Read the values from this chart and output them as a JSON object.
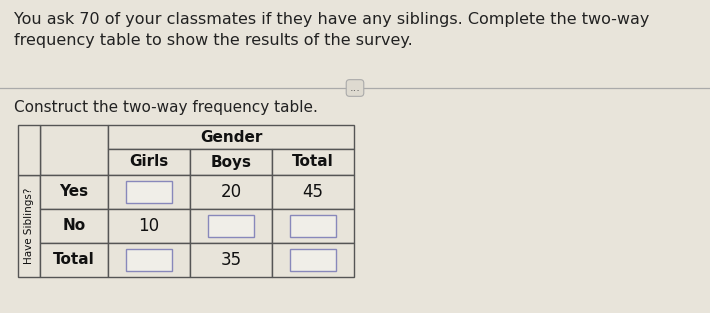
{
  "title_text": "You ask 70 of your classmates if they have any siblings. Complete the two-way\nfrequency table to show the results of the survey.",
  "subtitle_text": "Construct the two-way frequency table.",
  "background_color": "#e8e4da",
  "table_bg": "#e8e4da",
  "cell_bg": "#e8e4da",
  "border_color": "#555555",
  "title_fontsize": 11.5,
  "subtitle_fontsize": 11,
  "col_header_top": "Gender",
  "col_headers": [
    "Girls",
    "Boys",
    "Total"
  ],
  "row_header_label": "Have Siblings?",
  "row_labels": [
    "Yes",
    "No",
    "Total"
  ],
  "cell_data": [
    [
      "",
      "20",
      "45"
    ],
    [
      "10",
      "",
      ""
    ],
    [
      "",
      "35",
      ""
    ]
  ],
  "dots_label": "...",
  "separator_color": "#aaaaaa",
  "dots_box_color": "#dedad0",
  "dots_border_color": "#aaaaaa",
  "empty_box_border": "#8888bb",
  "empty_box_face": "#f0eee8"
}
